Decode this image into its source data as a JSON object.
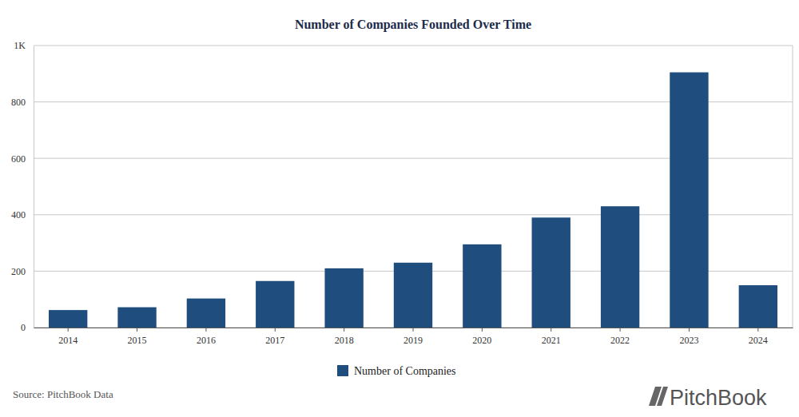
{
  "chart_data": {
    "type": "bar",
    "title": "Number of Companies Founded Over Time",
    "categories": [
      "2014",
      "2015",
      "2016",
      "2017",
      "2018",
      "2019",
      "2020",
      "2021",
      "2022",
      "2023",
      "2024"
    ],
    "series": [
      {
        "name": "Number of Companies",
        "color": "#1f4e7e",
        "values": [
          62,
          72,
          103,
          165,
          210,
          230,
          295,
          390,
          430,
          905,
          150
        ]
      }
    ],
    "ylim": [
      0,
      1000
    ],
    "yticks": [
      0,
      200,
      400,
      600,
      800,
      {
        "value": 1000,
        "label": "1K"
      }
    ],
    "grid": true,
    "legend": "bottom",
    "source": "Source: PitchBook Data",
    "logo": "PitchBook"
  }
}
